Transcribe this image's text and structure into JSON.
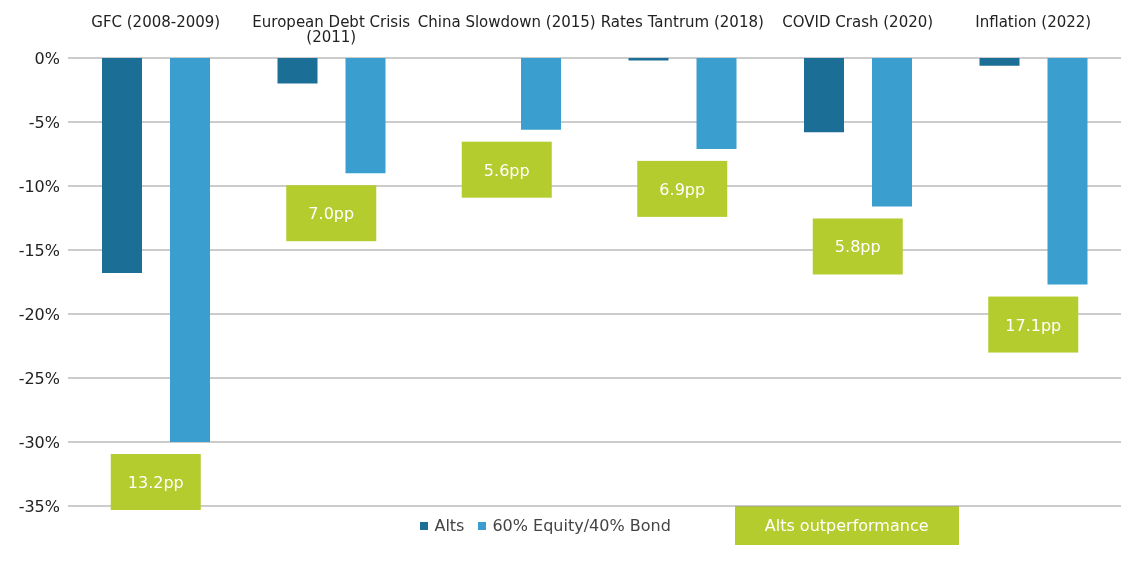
{
  "chart_data": {
    "type": "bar",
    "categories": [
      "GFC (2008-2009)",
      "European Debt Crisis (2011)",
      "China Slowdown (2015)",
      "Rates Tantrum (2018)",
      "COVID Crash (2020)",
      "Inflation (2022)"
    ],
    "series": [
      {
        "name": "Alts",
        "color": "#1b6e96",
        "values": [
          -16.8,
          -2.0,
          0,
          -0.2,
          -5.8,
          -0.6
        ]
      },
      {
        "name": "60% Equity/40% Bond",
        "color": "#3a9fcf",
        "values": [
          -30.0,
          -9.0,
          -5.6,
          -7.1,
          -11.6,
          -17.7
        ]
      }
    ],
    "ylim": [
      -35,
      0
    ],
    "yticks": [
      {
        "value": 0,
        "label": "0%"
      },
      {
        "value": -5,
        "label": "-5%"
      },
      {
        "value": -10,
        "label": "-10%"
      },
      {
        "value": -15,
        "label": "-15%"
      },
      {
        "value": -20,
        "label": "-20%"
      },
      {
        "value": -25,
        "label": "-25%"
      },
      {
        "value": -30,
        "label": "-30%"
      },
      {
        "value": -35,
        "label": "-35%"
      }
    ],
    "grid": "y",
    "legend": "bottom",
    "annotations": [
      "13.2pp",
      "7.0pp",
      "5.6pp",
      "6.9pp",
      "5.8pp",
      "17.1pp",
      "Alts outperformance"
    ]
  }
}
